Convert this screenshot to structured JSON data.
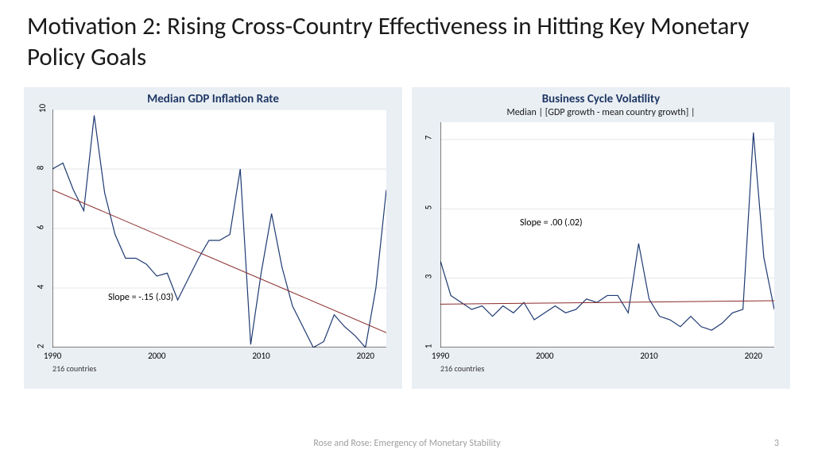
{
  "title": "Motivation 2: Rising Cross-Country Effectiveness in Hitting Key Monetary Policy Goals",
  "footer": "Rose and Rose: Emergency of Monetary Stability",
  "page_number": "3",
  "left_chart": {
    "title": "Median GDP Inflation Rate",
    "subtitle": "",
    "footnote": "216 countries",
    "slope_label": "Slope = -.15 (.03)",
    "type": "line",
    "background_color": "#eaeff4",
    "plot_background": "#ffffff",
    "line_color": "#1f3a72",
    "trend_color": "#8b2a2a",
    "axis_color": "#000000",
    "grid_color": "#d8dde2",
    "line_width": 1.2,
    "xlim": [
      1990,
      2022
    ],
    "ylim": [
      2,
      10
    ],
    "xticks": [
      1990,
      2000,
      2010,
      2020
    ],
    "yticks": [
      2,
      4,
      6,
      8,
      10
    ],
    "data": {
      "x": [
        1990,
        1991,
        1992,
        1993,
        1994,
        1995,
        1996,
        1997,
        1998,
        1999,
        2000,
        2001,
        2002,
        2003,
        2004,
        2005,
        2006,
        2007,
        2008,
        2009,
        2010,
        2011,
        2012,
        2013,
        2014,
        2015,
        2016,
        2017,
        2018,
        2019,
        2020,
        2021,
        2022
      ],
      "y": [
        8.0,
        8.2,
        7.3,
        6.6,
        9.8,
        7.2,
        5.8,
        5.0,
        5.0,
        4.8,
        4.4,
        4.5,
        3.6,
        4.3,
        5.0,
        5.6,
        5.6,
        5.8,
        8.0,
        2.1,
        4.5,
        6.5,
        4.7,
        3.4,
        2.7,
        2.0,
        2.2,
        3.1,
        2.7,
        2.4,
        2.0,
        4.0,
        7.3
      ]
    },
    "trend": {
      "x": [
        1990,
        2022
      ],
      "y": [
        7.3,
        2.5
      ]
    }
  },
  "right_chart": {
    "title": "Business Cycle Volatility",
    "subtitle": "Median | [GDP growth - mean country growth] |",
    "footnote": "216 countries",
    "slope_label": "Slope = .00 (.02)",
    "type": "line",
    "background_color": "#eaeff4",
    "plot_background": "#ffffff",
    "line_color": "#1f3a72",
    "trend_color": "#8b2a2a",
    "axis_color": "#000000",
    "grid_color": "#d8dde2",
    "line_width": 1.2,
    "xlim": [
      1990,
      2022
    ],
    "ylim": [
      1,
      7.5
    ],
    "xticks": [
      1990,
      2000,
      2010,
      2020
    ],
    "yticks": [
      1,
      3,
      5,
      7
    ],
    "data": {
      "x": [
        1990,
        1991,
        1992,
        1993,
        1994,
        1995,
        1996,
        1997,
        1998,
        1999,
        2000,
        2001,
        2002,
        2003,
        2004,
        2005,
        2006,
        2007,
        2008,
        2009,
        2010,
        2011,
        2012,
        2013,
        2014,
        2015,
        2016,
        2017,
        2018,
        2019,
        2020,
        2021,
        2022
      ],
      "y": [
        3.5,
        2.5,
        2.3,
        2.1,
        2.2,
        1.9,
        2.2,
        2.0,
        2.3,
        1.8,
        2.0,
        2.2,
        2.0,
        2.1,
        2.4,
        2.3,
        2.5,
        2.5,
        2.0,
        4.0,
        2.4,
        1.9,
        1.8,
        1.6,
        1.9,
        1.6,
        1.5,
        1.7,
        2.0,
        2.1,
        7.2,
        3.6,
        2.1
      ]
    },
    "trend": {
      "x": [
        1990,
        2022
      ],
      "y": [
        2.25,
        2.35
      ]
    }
  }
}
